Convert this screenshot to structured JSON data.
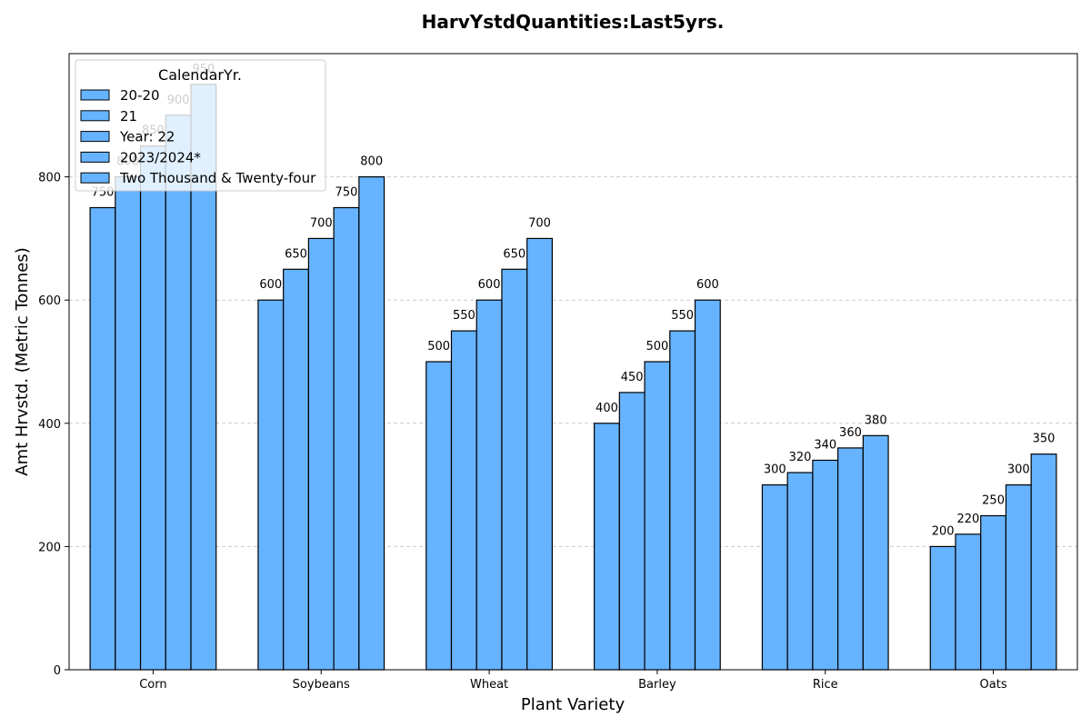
{
  "chart_data": {
    "type": "bar",
    "title": "HarvYstdQuantities:Last5yrs.",
    "xlabel": "Plant Variety",
    "ylabel": "Amt Hrvstd. (Metric Tonnes)",
    "ylim": [
      0,
      1000
    ],
    "yticks": [
      0,
      200,
      400,
      600,
      800
    ],
    "grid": "horizontal-dashed",
    "legend_title": "CalendarYr.",
    "legend_position": "top-left",
    "bar_color": "#66b3ff",
    "categories": [
      "Corn",
      "Soybeans",
      "Wheat",
      "Barley",
      "Rice",
      "Oats"
    ],
    "series": [
      {
        "name": "20-20",
        "values": [
          750,
          600,
          500,
          400,
          300,
          200
        ]
      },
      {
        "name": "21",
        "values": [
          800,
          650,
          550,
          450,
          320,
          220
        ]
      },
      {
        "name": "Year: 22",
        "values": [
          850,
          700,
          600,
          500,
          340,
          250
        ]
      },
      {
        "name": "2023/2024*",
        "values": [
          900,
          750,
          650,
          550,
          360,
          300
        ]
      },
      {
        "name": "Two Thousand & Twenty-four",
        "values": [
          950,
          800,
          700,
          600,
          380,
          350
        ]
      }
    ]
  }
}
